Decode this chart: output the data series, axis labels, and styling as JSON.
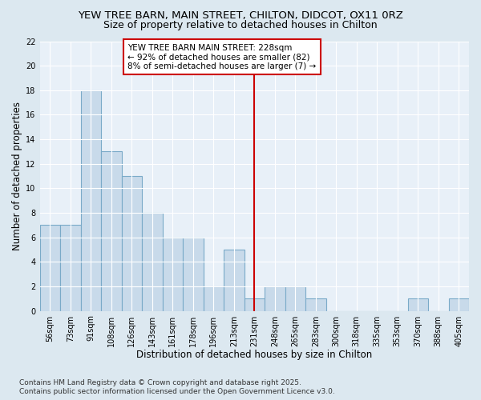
{
  "title": "YEW TREE BARN, MAIN STREET, CHILTON, DIDCOT, OX11 0RZ",
  "subtitle": "Size of property relative to detached houses in Chilton",
  "xlabel": "Distribution of detached houses by size in Chilton",
  "ylabel": "Number of detached properties",
  "categories": [
    "56sqm",
    "73sqm",
    "91sqm",
    "108sqm",
    "126sqm",
    "143sqm",
    "161sqm",
    "178sqm",
    "196sqm",
    "213sqm",
    "231sqm",
    "248sqm",
    "265sqm",
    "283sqm",
    "300sqm",
    "318sqm",
    "335sqm",
    "353sqm",
    "370sqm",
    "388sqm",
    "405sqm"
  ],
  "values": [
    7,
    7,
    18,
    13,
    11,
    8,
    6,
    6,
    2,
    5,
    1,
    2,
    2,
    1,
    0,
    0,
    0,
    0,
    1,
    0,
    1
  ],
  "bar_color": "#c8daea",
  "bar_edge_color": "#7aaac8",
  "vline_x_index": 10,
  "vline_color": "#cc0000",
  "annotation_text": "YEW TREE BARN MAIN STREET: 228sqm\n← 92% of detached houses are smaller (82)\n8% of semi-detached houses are larger (7) →",
  "annotation_box_facecolor": "#ffffff",
  "annotation_box_edgecolor": "#cc0000",
  "ylim": [
    0,
    22
  ],
  "yticks": [
    0,
    2,
    4,
    6,
    8,
    10,
    12,
    14,
    16,
    18,
    20,
    22
  ],
  "footer_text": "Contains HM Land Registry data © Crown copyright and database right 2025.\nContains public sector information licensed under the Open Government Licence v3.0.",
  "bg_color": "#dce8f0",
  "plot_bg_color": "#e8f0f8",
  "grid_color": "#ffffff",
  "title_fontsize": 9.5,
  "subtitle_fontsize": 9,
  "tick_fontsize": 7,
  "xlabel_fontsize": 8.5,
  "ylabel_fontsize": 8.5,
  "footer_fontsize": 6.5,
  "annot_fontsize": 7.5
}
